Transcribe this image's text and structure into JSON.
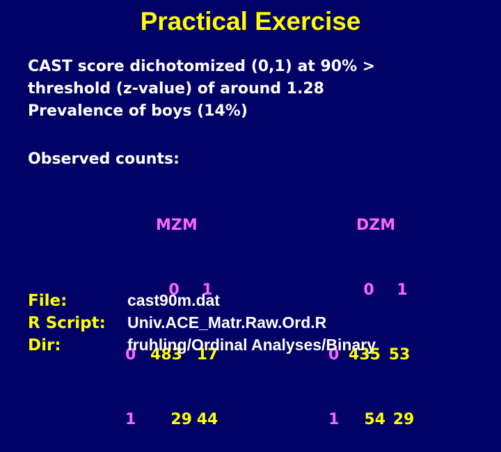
{
  "title": "Practical Exercise",
  "bullets": [
    "CAST score dichotomized (0,1) at 90% >",
    "threshold (z-value) of around 1.28",
    "Prevalence of boys (14%)"
  ],
  "observed_label": "Observed counts:",
  "mzm": {
    "title": "MZM",
    "col_labels": [
      "0",
      "1"
    ],
    "rows": [
      {
        "label": "0",
        "values": [
          "483",
          "17"
        ]
      },
      {
        "label": "1",
        "values": [
          "29",
          "44"
        ]
      }
    ]
  },
  "dzm": {
    "title": "DZM",
    "col_labels": [
      "0",
      "1"
    ],
    "rows": [
      {
        "label": "0",
        "values": [
          "435",
          "53"
        ]
      },
      {
        "label": "1",
        "values": [
          "54",
          "29"
        ]
      }
    ]
  },
  "files": {
    "file_label": "File:",
    "file_value": "cast90m.dat",
    "script_label": "R Script:",
    "script_value": "Univ.ACE_Matr.Raw.Ord.R",
    "dir_label": "Dir:",
    "dir_value": "fruhling/Ordinal Analyses/Binary"
  },
  "colors": {
    "background": "#000066",
    "title": "#ffff00",
    "text": "#ffffff",
    "table_header": "#ff66ff",
    "table_values": "#ffff00"
  }
}
